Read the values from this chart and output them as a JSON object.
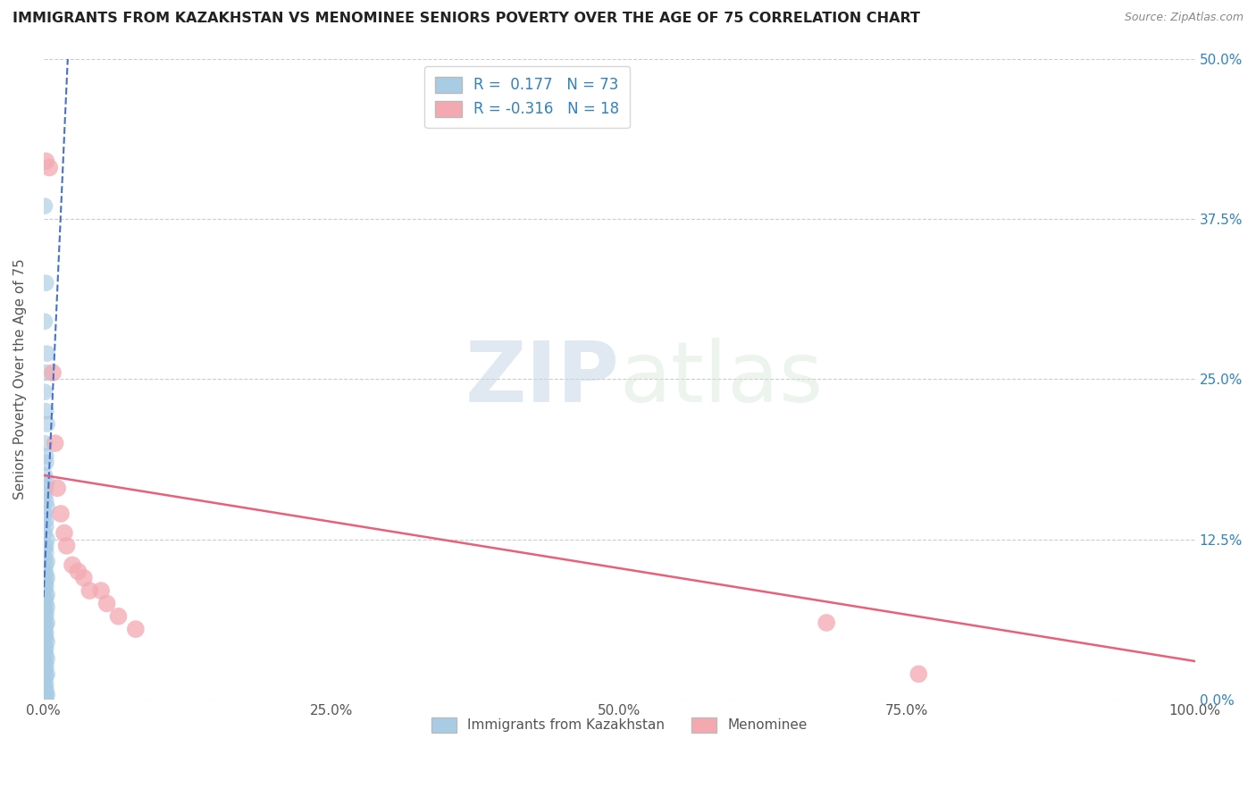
{
  "title": "IMMIGRANTS FROM KAZAKHSTAN VS MENOMINEE SENIORS POVERTY OVER THE AGE OF 75 CORRELATION CHART",
  "source": "Source: ZipAtlas.com",
  "ylabel": "Seniors Poverty Over the Age of 75",
  "legend_labels": [
    "Immigrants from Kazakhstan",
    "Menominee"
  ],
  "R_blue": 0.177,
  "N_blue": 73,
  "R_pink": -0.316,
  "N_pink": 18,
  "blue_color": "#a8cce4",
  "pink_color": "#f4a9b0",
  "blue_line_color": "#4472c4",
  "pink_line_color": "#e8607a",
  "xlim": [
    0.0,
    1.0
  ],
  "ylim": [
    0.0,
    0.5
  ],
  "xtick_values": [
    0.0,
    0.25,
    0.5,
    0.75,
    1.0
  ],
  "ytick_values": [
    0.0,
    0.125,
    0.25,
    0.375,
    0.5
  ],
  "watermark_zip": "ZIP",
  "watermark_atlas": "atlas",
  "blue_scatter_x": [
    0.001,
    0.002,
    0.001,
    0.003,
    0.002,
    0.001,
    0.002,
    0.003,
    0.001,
    0.002,
    0.002,
    0.001,
    0.003,
    0.002,
    0.001,
    0.002,
    0.003,
    0.001,
    0.002,
    0.002,
    0.001,
    0.003,
    0.002,
    0.001,
    0.002,
    0.001,
    0.003,
    0.002,
    0.001,
    0.002,
    0.003,
    0.002,
    0.001,
    0.002,
    0.001,
    0.003,
    0.002,
    0.001,
    0.002,
    0.003,
    0.001,
    0.002,
    0.002,
    0.001,
    0.003,
    0.002,
    0.001,
    0.002,
    0.001,
    0.002,
    0.003,
    0.001,
    0.002,
    0.001,
    0.002,
    0.003,
    0.001,
    0.002,
    0.002,
    0.001,
    0.003,
    0.002,
    0.001,
    0.002,
    0.001,
    0.002,
    0.001,
    0.002,
    0.003,
    0.001,
    0.002,
    0.001,
    0.002
  ],
  "blue_scatter_y": [
    0.385,
    0.325,
    0.295,
    0.27,
    0.255,
    0.24,
    0.225,
    0.215,
    0.2,
    0.19,
    0.185,
    0.175,
    0.17,
    0.165,
    0.16,
    0.155,
    0.15,
    0.145,
    0.14,
    0.135,
    0.13,
    0.125,
    0.12,
    0.118,
    0.115,
    0.11,
    0.108,
    0.105,
    0.1,
    0.098,
    0.095,
    0.092,
    0.09,
    0.088,
    0.085,
    0.082,
    0.08,
    0.078,
    0.075,
    0.072,
    0.07,
    0.068,
    0.065,
    0.062,
    0.06,
    0.058,
    0.055,
    0.052,
    0.05,
    0.048,
    0.045,
    0.042,
    0.04,
    0.038,
    0.035,
    0.032,
    0.03,
    0.028,
    0.025,
    0.022,
    0.02,
    0.018,
    0.015,
    0.012,
    0.01,
    0.008,
    0.006,
    0.005,
    0.004,
    0.003,
    0.002,
    0.001,
    0.0
  ],
  "pink_scatter_x": [
    0.002,
    0.005,
    0.008,
    0.01,
    0.012,
    0.015,
    0.018,
    0.02,
    0.025,
    0.03,
    0.035,
    0.04,
    0.05,
    0.055,
    0.065,
    0.08,
    0.68,
    0.76
  ],
  "pink_scatter_y": [
    0.42,
    0.415,
    0.255,
    0.2,
    0.165,
    0.145,
    0.13,
    0.12,
    0.105,
    0.1,
    0.095,
    0.085,
    0.085,
    0.075,
    0.065,
    0.055,
    0.06,
    0.02
  ],
  "blue_trendline_x": [
    0.0,
    0.022
  ],
  "blue_trendline_y_start": 0.08,
  "blue_trendline_y_end": 0.52,
  "pink_trendline_x": [
    0.0,
    1.0
  ],
  "pink_trendline_y_start": 0.175,
  "pink_trendline_y_end": 0.03
}
